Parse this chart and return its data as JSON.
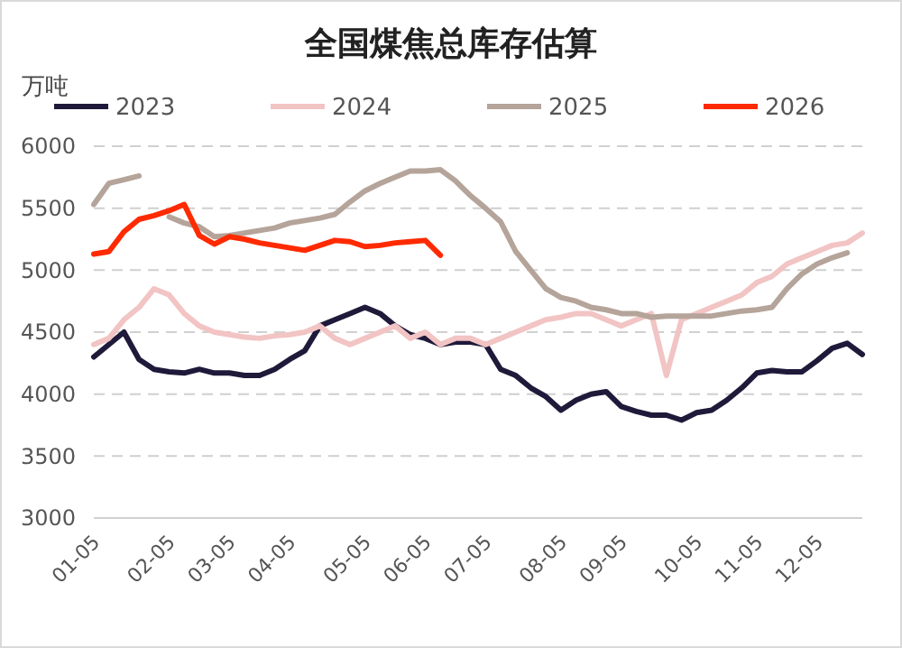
{
  "chart_data": {
    "type": "line",
    "title": "全国煤焦总库存估算",
    "ylabel": "万吨",
    "categories": [
      "01-05",
      null,
      null,
      null,
      null,
      "02-05",
      null,
      null,
      null,
      "03-05",
      null,
      null,
      null,
      "04-05",
      null,
      null,
      null,
      null,
      "05-05",
      null,
      null,
      null,
      "06-05",
      null,
      null,
      null,
      "07-05",
      null,
      null,
      null,
      null,
      "08-05",
      null,
      null,
      null,
      "09-05",
      null,
      null,
      null,
      null,
      "10-05",
      null,
      null,
      null,
      "11-05",
      null,
      null,
      null,
      "12-05",
      null,
      null,
      null
    ],
    "series": [
      {
        "name": "2023",
        "color": "#1f1a3a",
        "values": [
          4300,
          4400,
          4500,
          4280,
          4200,
          4180,
          4170,
          4200,
          4170,
          4170,
          4150,
          4150,
          4200,
          4280,
          4350,
          4550,
          4600,
          4650,
          4700,
          4650,
          4550,
          4480,
          4450,
          4400,
          4420,
          4420,
          4400,
          4200,
          4150,
          4050,
          3980,
          3870,
          3950,
          4000,
          4020,
          3900,
          3860,
          3830,
          3830,
          3790,
          3850,
          3870,
          3950,
          4050,
          4170,
          4190,
          4180,
          4180,
          4270,
          4370,
          4410,
          4320
        ]
      },
      {
        "name": "2024",
        "color": "#f2c4c4",
        "values": [
          4400,
          4450,
          4600,
          4700,
          4850,
          4800,
          4650,
          4550,
          4500,
          4480,
          4460,
          4450,
          4470,
          4480,
          4500,
          4550,
          4450,
          4400,
          4450,
          4500,
          4550,
          4450,
          4500,
          4400,
          4450,
          4450,
          4400,
          4450,
          4500,
          4550,
          4600,
          4620,
          4650,
          4650,
          4600,
          4550,
          4600,
          4650,
          4150,
          4600,
          4650,
          4700,
          4750,
          4800,
          4900,
          4950,
          5050,
          5100,
          5150,
          5200,
          5220,
          5300
        ]
      },
      {
        "name": "2025",
        "color": "#b5a49a",
        "values": [
          5530,
          5700,
          5730,
          5760,
          null,
          5430,
          5380,
          5350,
          5270,
          5280,
          5300,
          5320,
          5340,
          5380,
          5400,
          5420,
          5450,
          5550,
          5640,
          5700,
          5750,
          5800,
          5800,
          5810,
          5720,
          5600,
          5500,
          5390,
          5150,
          5000,
          4850,
          4780,
          4750,
          4700,
          4680,
          4650,
          4650,
          4620,
          4630,
          4630,
          4630,
          4630,
          4650,
          4670,
          4680,
          4700,
          4850,
          4970,
          5050,
          5100,
          5140,
          null
        ]
      },
      {
        "name": "2026",
        "color": "#ff2a00",
        "values": [
          5130,
          5150,
          5310,
          5410,
          5440,
          5480,
          5530,
          5280,
          5210,
          5270,
          5250,
          5220,
          5200,
          5180,
          5160,
          5200,
          5240,
          5230,
          5190,
          5200,
          5220,
          5230,
          5240,
          5120,
          null,
          null,
          null,
          null,
          null,
          null,
          null,
          null,
          null,
          null,
          null,
          null,
          null,
          null,
          null,
          null,
          null,
          null,
          null,
          null,
          null,
          null,
          null,
          null,
          null,
          null,
          null,
          null
        ]
      }
    ],
    "ylim": [
      3000,
      6000
    ],
    "yticks": [
      3000,
      3500,
      4000,
      4500,
      5000,
      5500,
      6000
    ],
    "grid": "y",
    "legend": "top",
    "marker": "none",
    "line_style": "solid"
  }
}
